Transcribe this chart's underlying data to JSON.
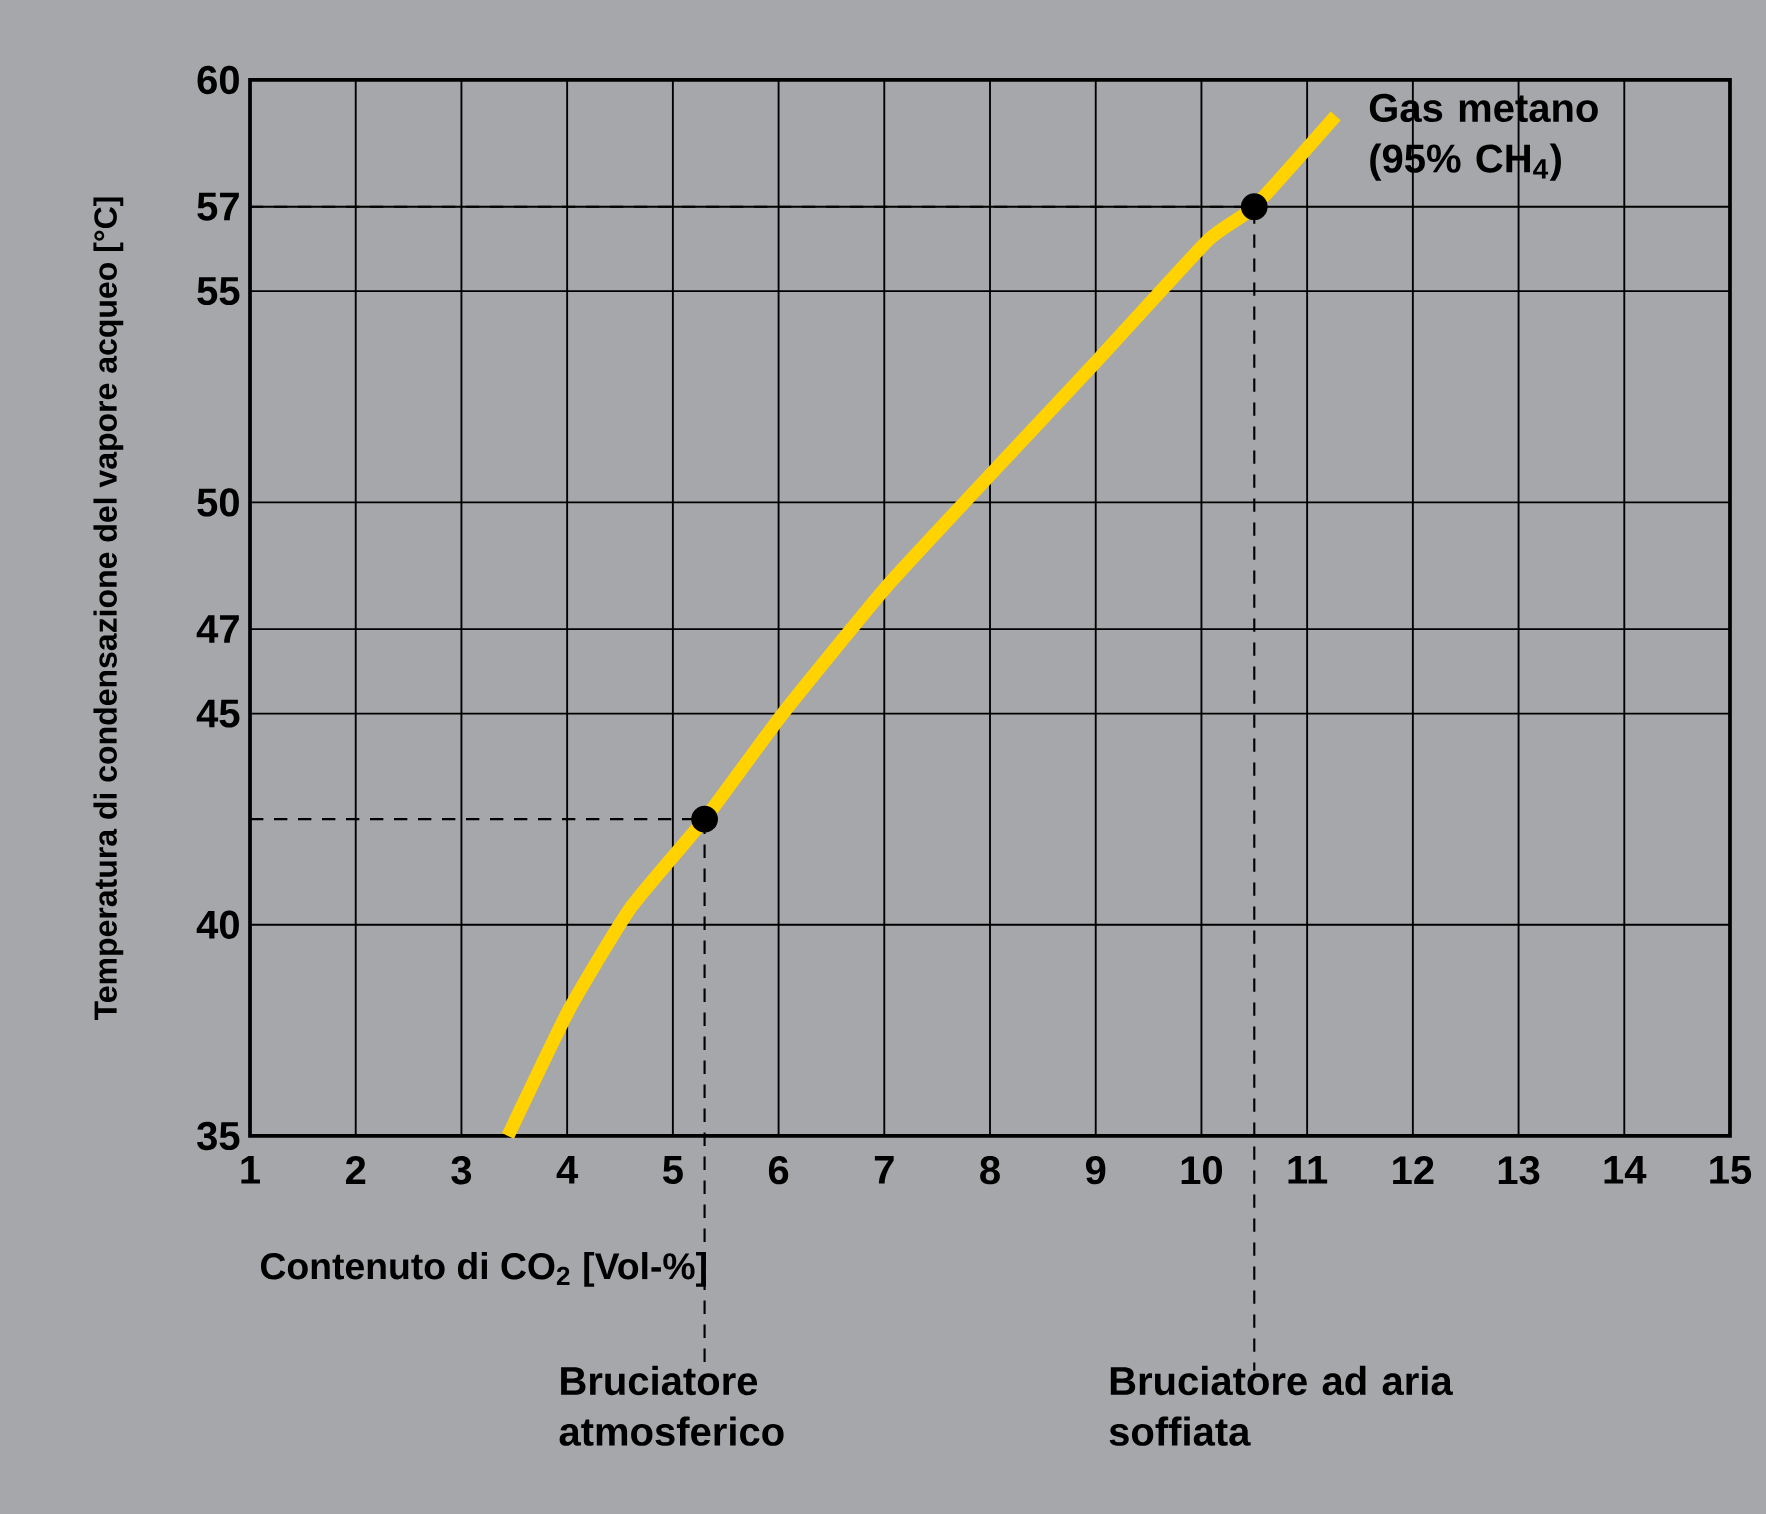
{
  "chart_data": {
    "type": "line",
    "xlabel": "Contenuto di CO$_{2}$ [Vol-%]",
    "ylabel": "Temperatura di condensazione del vapore acqueo [°C]",
    "xlim": [
      1,
      15
    ],
    "ylim": [
      35,
      60
    ],
    "xticks": [
      1,
      2,
      3,
      4,
      5,
      6,
      7,
      8,
      9,
      10,
      11,
      12,
      13,
      14,
      15
    ],
    "yticks": [
      35,
      40,
      45,
      47,
      50,
      55,
      57,
      60
    ],
    "grid": true,
    "legend": false,
    "series": [
      {
        "name": "Gas metano (95% CH$_{4}$)",
        "color": "#ffd200",
        "marker": "none",
        "x": [
          3.44,
          4.02,
          4.6,
          5.3,
          6.04,
          7.02,
          8.02,
          9.03,
          10.06,
          10.5,
          11.27
        ],
        "values": [
          35,
          38.0,
          40.4,
          42.5,
          45.0,
          48.0,
          50.7,
          53.4,
          56.2,
          57,
          59.15
        ]
      },
      {
        "type": "scatter",
        "color": "#000000",
        "marker": "circle",
        "x": [
          5.3,
          10.5
        ],
        "values": [
          42.5,
          57
        ]
      }
    ],
    "annotations": [
      "Bruciatore atmosferico",
      "Bruciatore ad aria soffiata"
    ]
  }
}
